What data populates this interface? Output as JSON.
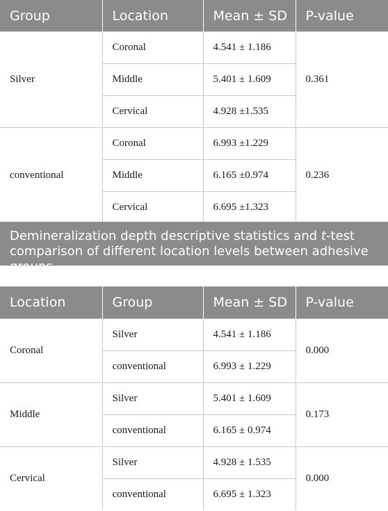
{
  "table1": {
    "headers": [
      "Group",
      "Location",
      "Mean ± SD",
      "P-value"
    ],
    "groups": [
      {
        "name": "Silver",
        "p_value": "0.361",
        "rows": [
          {
            "location": "Coronal",
            "mean_sd": "4.541 ± 1.186"
          },
          {
            "location": "Middle",
            "mean_sd": "5.401 ± 1.609"
          },
          {
            "location": "Cervical",
            "mean_sd": "4.928 ±1.535"
          }
        ]
      },
      {
        "name": "conventional",
        "p_value": "0.236",
        "rows": [
          {
            "location": "Coronal",
            "mean_sd": "6.993 ±1.229"
          },
          {
            "location": "Middle",
            "mean_sd": "6.165 ±0.974"
          },
          {
            "location": "Cervical",
            "mean_sd": "6.695 ±1.323"
          }
        ]
      }
    ]
  },
  "caption": {
    "before": "Demineralization depth descriptive statistics and ",
    "italic": "t",
    "after": "-test comparison of different location levels between adhesive groups"
  },
  "table2": {
    "headers": [
      "Location",
      "Group",
      "Mean ± SD",
      "P-value"
    ],
    "locations": [
      {
        "name": "Coronal",
        "p_value": "0.000",
        "rows": [
          {
            "group": "Silver",
            "mean_sd": "4.541 ± 1.186"
          },
          {
            "group": "conventional",
            "mean_sd": "6.993 ± 1.229"
          }
        ]
      },
      {
        "name": "Middle",
        "p_value": "0.173",
        "rows": [
          {
            "group": "Silver",
            "mean_sd": "5.401 ± 1.609"
          },
          {
            "group": "conventional",
            "mean_sd": "6.165 ± 0.974"
          }
        ]
      },
      {
        "name": "Cervical",
        "p_value": "0.000",
        "rows": [
          {
            "group": "Silver",
            "mean_sd": "4.928 ± 1.535"
          },
          {
            "group": "conventional",
            "mean_sd": "6.695 ± 1.323"
          }
        ]
      }
    ]
  }
}
